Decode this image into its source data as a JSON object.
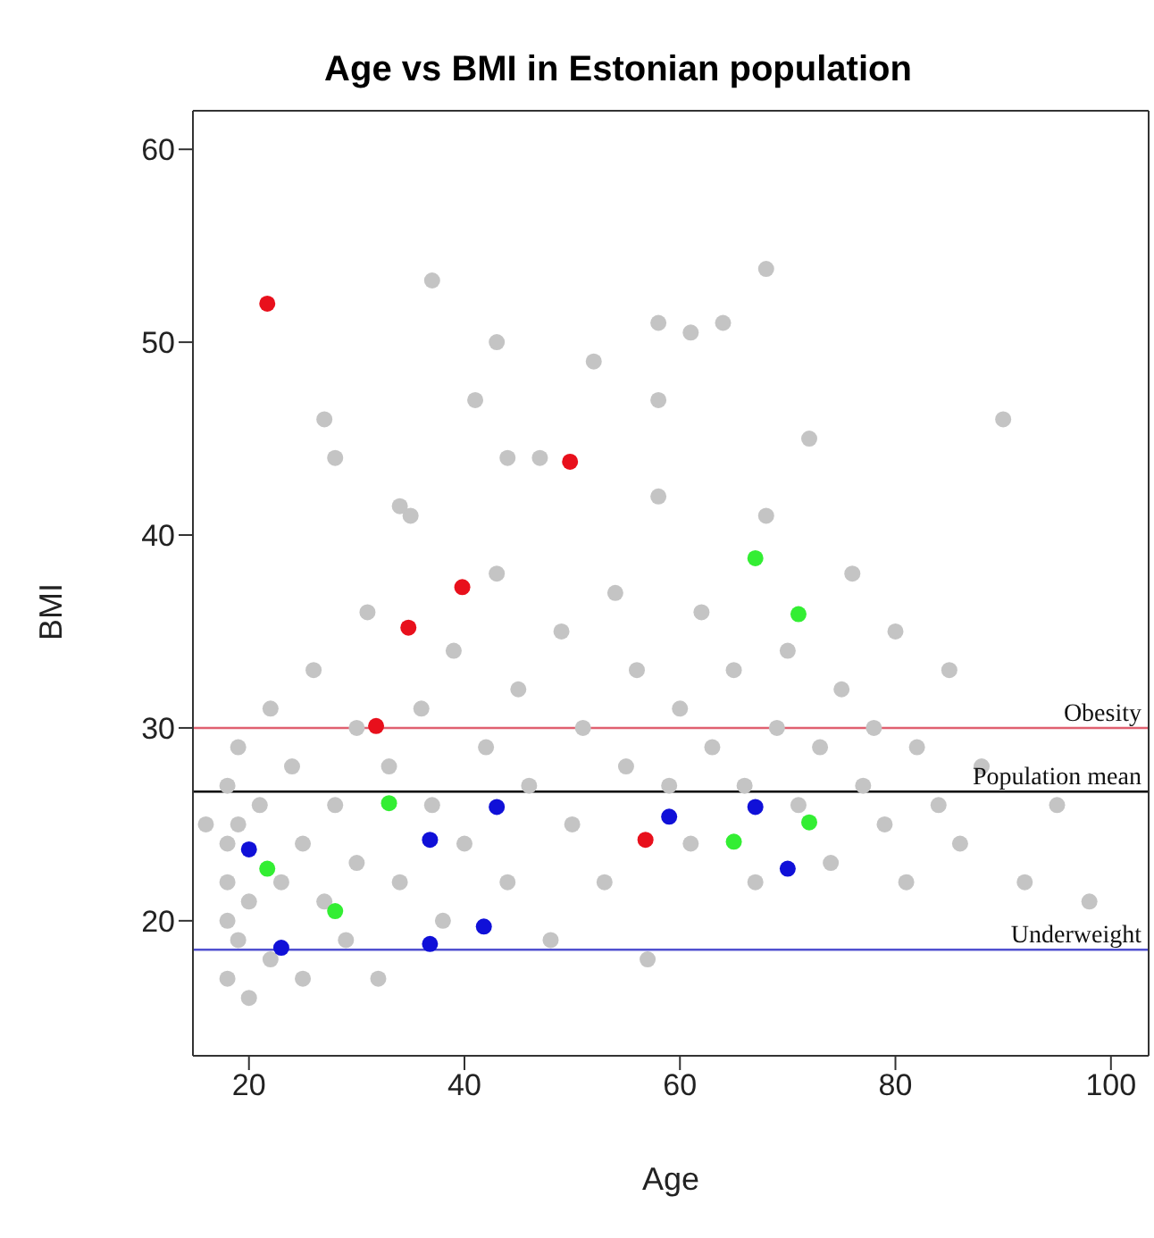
{
  "chart_data": {
    "type": "scatter",
    "title": "Age vs BMI in Estonian population",
    "xlabel": "Age",
    "ylabel": "BMI",
    "xlim": [
      14.8,
      103.5
    ],
    "xticks": [
      20,
      40,
      60,
      80,
      100
    ],
    "ylim": [
      13,
      62
    ],
    "yticks": [
      20,
      30,
      40,
      50,
      60
    ],
    "grid": false,
    "legend": false,
    "marker": "circle",
    "series": [
      {
        "color": "#c4c4c4",
        "x": [
          16,
          18,
          18,
          18,
          18,
          18,
          19,
          19,
          19,
          20,
          20,
          21,
          22,
          22,
          23,
          24,
          25,
          25,
          26,
          27,
          28,
          29,
          30,
          30,
          31,
          32,
          33,
          34,
          35,
          36,
          37,
          38,
          39,
          40,
          41,
          42,
          43,
          44,
          45,
          46,
          47,
          48,
          49,
          50,
          51,
          52,
          53,
          54,
          55,
          56,
          57,
          58,
          59,
          60,
          61,
          62,
          63,
          64,
          65,
          66,
          67,
          68,
          69,
          70,
          71,
          72,
          73,
          74,
          75,
          76,
          77,
          78,
          79,
          80,
          81,
          82,
          84,
          85,
          86,
          88,
          90,
          92,
          95,
          98,
          37,
          68,
          58,
          61,
          43,
          28,
          27,
          34,
          44,
          58
        ],
        "values": [
          25,
          17,
          20,
          22,
          24,
          27,
          19,
          25,
          29,
          16,
          21,
          26,
          18,
          31,
          22,
          28,
          17,
          24,
          33,
          21,
          26,
          19,
          30,
          23,
          36,
          17,
          28,
          22,
          41,
          31,
          26,
          20,
          34,
          24,
          47,
          29,
          38,
          22,
          32,
          27,
          44,
          19,
          35,
          25,
          30,
          49,
          22,
          37,
          28,
          33,
          18,
          42,
          27,
          31,
          24,
          36,
          29,
          51,
          33,
          27,
          22,
          41,
          30,
          34,
          26,
          45,
          29,
          23,
          32,
          38,
          27,
          30,
          25,
          35,
          22,
          29,
          26,
          33,
          24,
          28,
          46,
          22,
          26,
          21,
          53.2,
          53.8,
          51,
          50.5,
          50,
          44,
          46,
          41.5,
          44,
          47
        ]
      },
      {
        "color": "#e8101c",
        "x": [
          21.7,
          49.8,
          39.8,
          34.8,
          31.8,
          56.8
        ],
        "values": [
          52,
          43.8,
          37.3,
          35.2,
          30.1,
          24.2
        ]
      },
      {
        "color": "#33ee33",
        "x": [
          67,
          71,
          33,
          21.7,
          28,
          65,
          72
        ],
        "values": [
          38.8,
          35.9,
          26.1,
          22.7,
          20.5,
          24.1,
          25.1
        ]
      },
      {
        "color": "#1010d8",
        "x": [
          20,
          23,
          36.8,
          36.8,
          41.8,
          43,
          59,
          67,
          70
        ],
        "values": [
          23.7,
          18.6,
          24.2,
          18.8,
          19.7,
          25.9,
          25.4,
          25.9,
          22.7
        ]
      }
    ],
    "ref_lines": [
      {
        "axis": "y",
        "value": 30,
        "label": "Obesity",
        "color": "#e06070"
      },
      {
        "axis": "y",
        "value": 26.7,
        "label": "Population mean",
        "color": "#000000"
      },
      {
        "axis": "y",
        "value": 18.5,
        "label": "Underweight",
        "color": "#5050d0"
      }
    ]
  }
}
